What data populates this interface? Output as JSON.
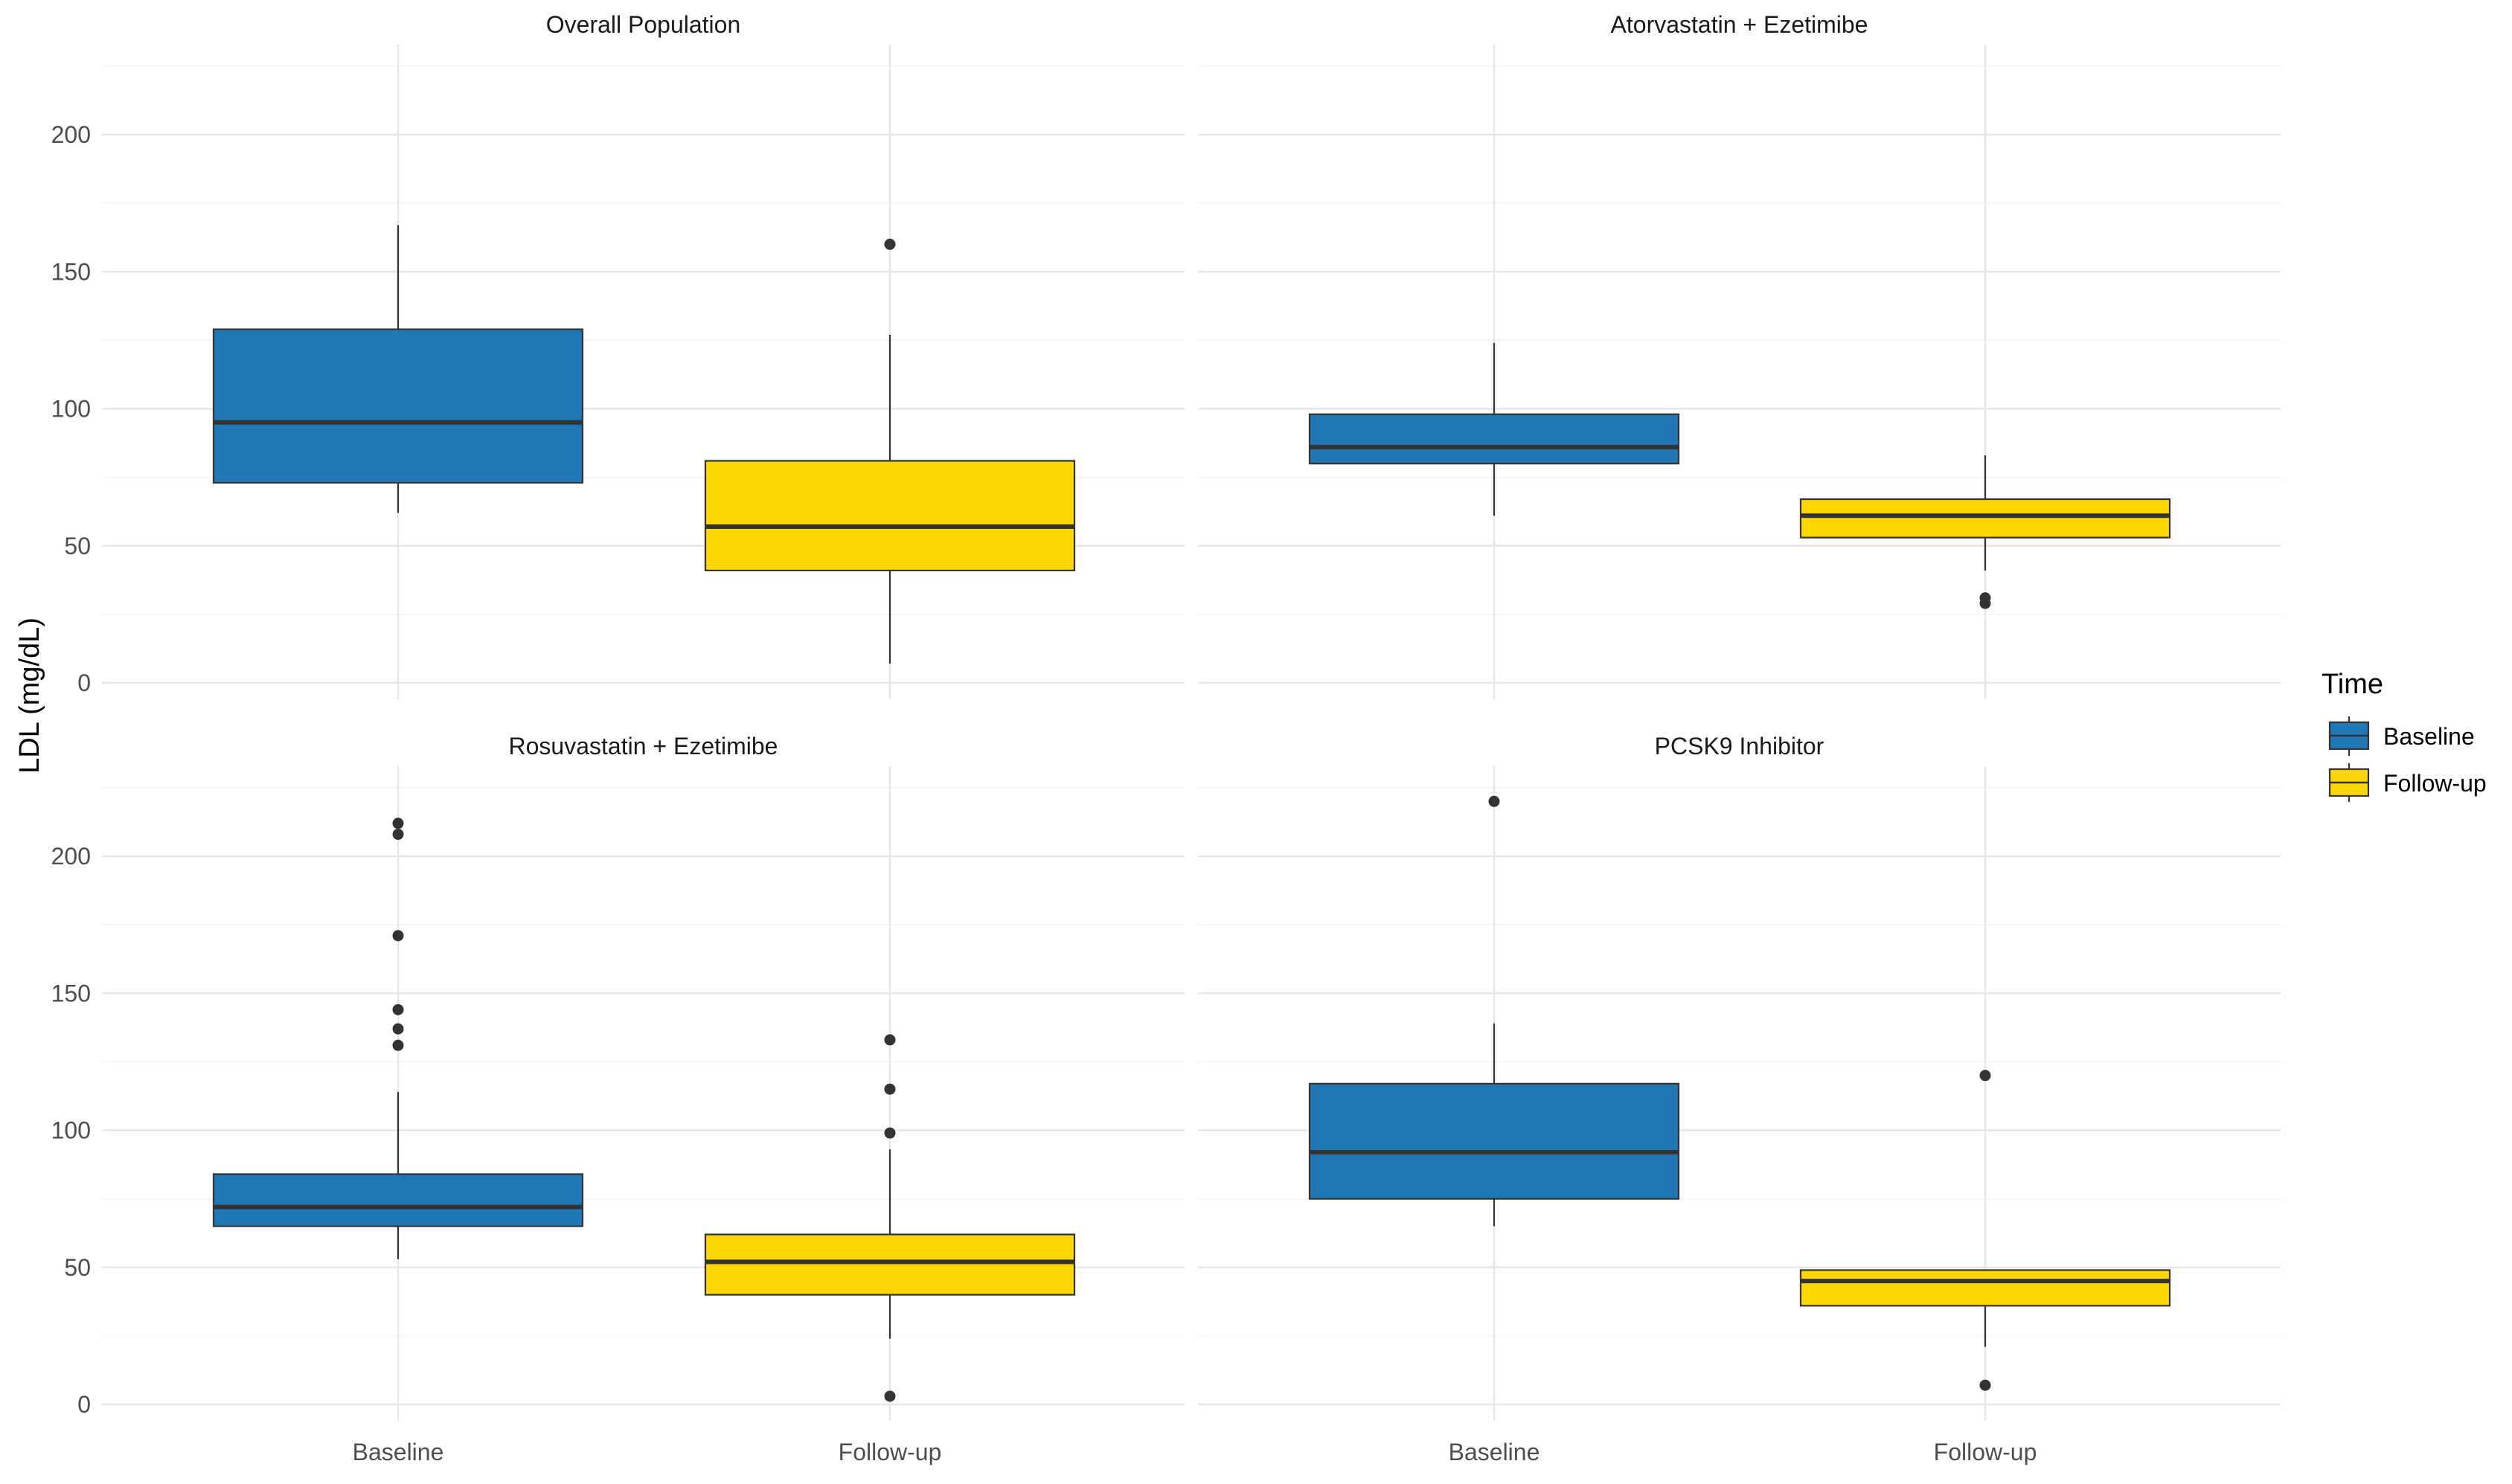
{
  "chart_data": {
    "type": "boxplot",
    "ylabel": "LDL (mg/dL)",
    "xlabel": "",
    "ylim": [
      -8,
      230
    ],
    "y_ticks": [
      0,
      50,
      100,
      150,
      200
    ],
    "y_minor": [
      25,
      75,
      125,
      175,
      225
    ],
    "categories": [
      "Baseline",
      "Follow-up"
    ],
    "legend": {
      "title": "Time",
      "position": "right",
      "items": [
        {
          "label": "Baseline",
          "color": "#1F78B4"
        },
        {
          "label": "Follow-up",
          "color": "#FFD700"
        }
      ]
    },
    "panels": [
      {
        "title": "Overall Population",
        "boxes": [
          {
            "category": "Baseline",
            "whisker_low": 62,
            "q1": 73,
            "median": 95,
            "q3": 129,
            "whisker_high": 167,
            "outliers": []
          },
          {
            "category": "Follow-up",
            "whisker_low": 7,
            "q1": 41,
            "median": 57,
            "q3": 81,
            "whisker_high": 127,
            "outliers": [
              160
            ]
          }
        ]
      },
      {
        "title": "Atorvastatin + Ezetimibe",
        "boxes": [
          {
            "category": "Baseline",
            "whisker_low": 61,
            "q1": 80,
            "median": 86,
            "q3": 98,
            "whisker_high": 124,
            "outliers": []
          },
          {
            "category": "Follow-up",
            "whisker_low": 41,
            "q1": 53,
            "median": 61,
            "q3": 67,
            "whisker_high": 83,
            "outliers": [
              29,
              31
            ]
          }
        ]
      },
      {
        "title": "Rosuvastatin + Ezetimibe",
        "boxes": [
          {
            "category": "Baseline",
            "whisker_low": 53,
            "q1": 65,
            "median": 72,
            "q3": 84,
            "whisker_high": 114,
            "outliers": [
              131,
              137,
              144,
              171,
              208,
              212
            ]
          },
          {
            "category": "Follow-up",
            "whisker_low": 24,
            "q1": 40,
            "median": 52,
            "q3": 62,
            "whisker_high": 93,
            "outliers": [
              3,
              99,
              115,
              133
            ]
          }
        ]
      },
      {
        "title": "PCSK9 Inhibitor",
        "boxes": [
          {
            "category": "Baseline",
            "whisker_low": 65,
            "q1": 75,
            "median": 92,
            "q3": 117,
            "whisker_high": 139,
            "outliers": [
              220
            ]
          },
          {
            "category": "Follow-up",
            "whisker_low": 21,
            "q1": 36,
            "median": 45,
            "q3": 49,
            "whisker_high": 49,
            "outliers": [
              7,
              120
            ]
          }
        ]
      }
    ]
  }
}
